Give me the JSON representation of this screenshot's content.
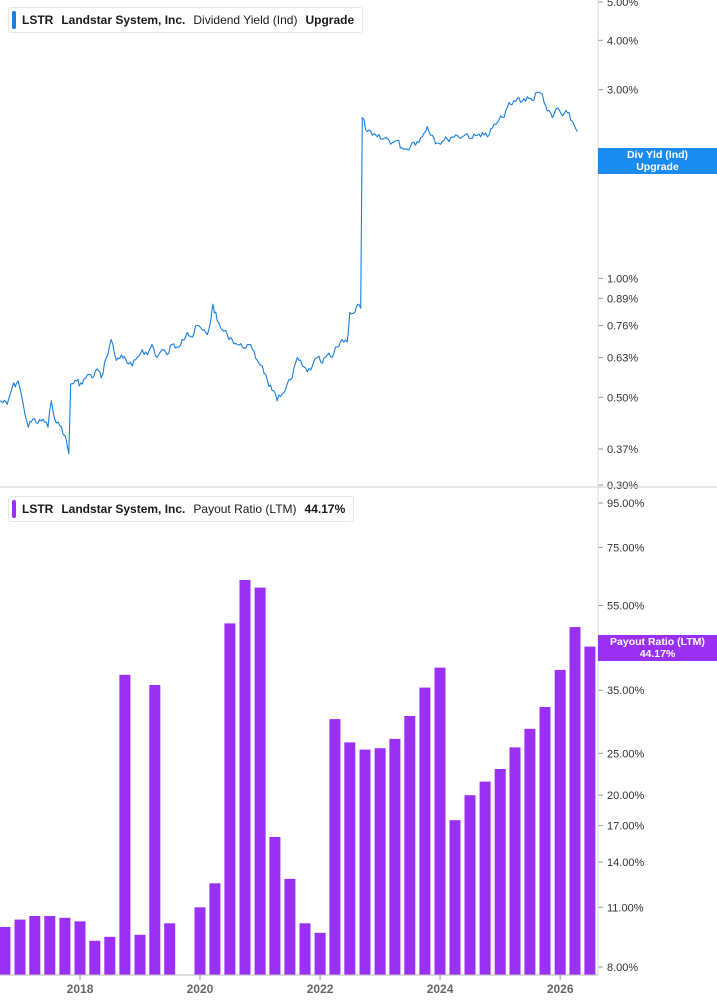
{
  "panels": {
    "top": {
      "ticker": "LSTR",
      "company": "Landstar System, Inc.",
      "metric": "Dividend Yield (Ind)",
      "value": "Upgrade",
      "tag_line1": "Div Yld (Ind)",
      "tag_line2": "Upgrade",
      "color": "#1a7fe0"
    },
    "bottom": {
      "ticker": "LSTR",
      "company": "Landstar System, Inc.",
      "metric": "Payout Ratio (LTM)",
      "value": "44.17%",
      "tag_line1": "Payout Ratio (LTM)",
      "tag_line2": "44.17%",
      "color": "#9b30f5"
    }
  },
  "chart_data": [
    {
      "type": "line",
      "name": "Dividend Yield (Ind)",
      "scale": "log",
      "ylim": [
        0.3,
        5.0
      ],
      "y_ticks": [
        {
          "v": 5.0,
          "label": "5.00%"
        },
        {
          "v": 4.0,
          "label": "4.00%"
        },
        {
          "v": 3.0,
          "label": "3.00%"
        },
        {
          "v": 1.0,
          "label": "1.00%"
        },
        {
          "v": 0.89,
          "label": "0.89%"
        },
        {
          "v": 0.76,
          "label": "0.76%"
        },
        {
          "v": 0.63,
          "label": "0.63%"
        },
        {
          "v": 0.5,
          "label": "0.50%"
        },
        {
          "v": 0.37,
          "label": "0.37%"
        },
        {
          "v": 0.3,
          "label": "0.30%"
        }
      ],
      "xlim": [
        "2016-09",
        "2026-08"
      ],
      "points": [
        [
          "2016-09-01",
          0.49
        ],
        [
          "2016-10-15",
          0.48
        ],
        [
          "2016-11-15",
          0.53
        ],
        [
          "2016-12-20",
          0.55
        ],
        [
          "2017-01-20",
          0.48
        ],
        [
          "2017-02-20",
          0.42
        ],
        [
          "2017-03-20",
          0.44
        ],
        [
          "2017-04-20",
          0.43
        ],
        [
          "2017-05-20",
          0.44
        ],
        [
          "2017-06-20",
          0.42
        ],
        [
          "2017-07-10",
          0.49
        ],
        [
          "2017-08-10",
          0.43
        ],
        [
          "2017-09-10",
          0.42
        ],
        [
          "2017-10-01",
          0.4
        ],
        [
          "2017-10-25",
          0.36
        ],
        [
          "2017-11-05",
          0.54
        ],
        [
          "2017-12-10",
          0.55
        ],
        [
          "2018-01-15",
          0.54
        ],
        [
          "2018-02-15",
          0.57
        ],
        [
          "2018-03-15",
          0.56
        ],
        [
          "2018-04-15",
          0.59
        ],
        [
          "2018-05-10",
          0.56
        ],
        [
          "2018-06-10",
          0.63
        ],
        [
          "2018-07-10",
          0.7
        ],
        [
          "2018-08-10",
          0.62
        ],
        [
          "2018-09-10",
          0.64
        ],
        [
          "2018-10-15",
          0.61
        ],
        [
          "2018-11-15",
          0.6
        ],
        [
          "2018-12-15",
          0.63
        ],
        [
          "2019-01-15",
          0.66
        ],
        [
          "2019-02-15",
          0.64
        ],
        [
          "2019-03-15",
          0.68
        ],
        [
          "2019-04-15",
          0.63
        ],
        [
          "2019-05-15",
          0.66
        ],
        [
          "2019-06-15",
          0.64
        ],
        [
          "2019-07-15",
          0.68
        ],
        [
          "2019-08-15",
          0.67
        ],
        [
          "2019-09-15",
          0.7
        ],
        [
          "2019-10-15",
          0.73
        ],
        [
          "2019-11-15",
          0.71
        ],
        [
          "2019-12-15",
          0.76
        ],
        [
          "2020-01-15",
          0.74
        ],
        [
          "2020-02-15",
          0.72
        ],
        [
          "2020-03-10",
          0.8
        ],
        [
          "2020-03-20",
          0.86
        ],
        [
          "2020-04-15",
          0.78
        ],
        [
          "2020-05-15",
          0.74
        ],
        [
          "2020-06-15",
          0.72
        ],
        [
          "2020-07-15",
          0.7
        ],
        [
          "2020-08-15",
          0.68
        ],
        [
          "2020-09-15",
          0.67
        ],
        [
          "2020-10-15",
          0.68
        ],
        [
          "2020-11-15",
          0.66
        ],
        [
          "2020-12-15",
          0.62
        ],
        [
          "2021-01-15",
          0.6
        ],
        [
          "2021-02-15",
          0.55
        ],
        [
          "2021-03-15",
          0.52
        ],
        [
          "2021-04-15",
          0.49
        ],
        [
          "2021-05-15",
          0.51
        ],
        [
          "2021-06-15",
          0.54
        ],
        [
          "2021-07-15",
          0.56
        ],
        [
          "2021-08-15",
          0.63
        ],
        [
          "2021-09-15",
          0.6
        ],
        [
          "2021-10-15",
          0.58
        ],
        [
          "2021-11-15",
          0.6
        ],
        [
          "2021-12-15",
          0.63
        ],
        [
          "2022-01-15",
          0.61
        ],
        [
          "2022-02-15",
          0.64
        ],
        [
          "2022-03-15",
          0.63
        ],
        [
          "2022-04-15",
          0.67
        ],
        [
          "2022-05-15",
          0.7
        ],
        [
          "2022-06-15",
          0.69
        ],
        [
          "2022-07-01",
          0.82
        ],
        [
          "2022-08-01",
          0.82
        ],
        [
          "2022-08-20",
          0.86
        ],
        [
          "2022-09-05",
          0.84
        ],
        [
          "2022-09-15",
          2.55
        ],
        [
          "2022-10-15",
          2.35
        ],
        [
          "2022-11-15",
          2.3
        ],
        [
          "2022-12-15",
          2.28
        ],
        [
          "2023-01-15",
          2.25
        ],
        [
          "2023-02-15",
          2.26
        ],
        [
          "2023-03-15",
          2.2
        ],
        [
          "2023-04-15",
          2.23
        ],
        [
          "2023-05-15",
          2.14
        ],
        [
          "2023-06-15",
          2.12
        ],
        [
          "2023-07-15",
          2.2
        ],
        [
          "2023-08-15",
          2.22
        ],
        [
          "2023-09-15",
          2.28
        ],
        [
          "2023-10-15",
          2.42
        ],
        [
          "2023-11-15",
          2.3
        ],
        [
          "2023-12-15",
          2.2
        ],
        [
          "2024-01-15",
          2.22
        ],
        [
          "2024-02-15",
          2.25
        ],
        [
          "2024-03-15",
          2.28
        ],
        [
          "2024-04-15",
          2.3
        ],
        [
          "2024-05-15",
          2.28
        ],
        [
          "2024-06-15",
          2.32
        ],
        [
          "2024-07-15",
          2.26
        ],
        [
          "2024-08-15",
          2.3
        ],
        [
          "2024-09-15",
          2.34
        ],
        [
          "2024-10-15",
          2.28
        ],
        [
          "2024-11-15",
          2.4
        ],
        [
          "2024-12-15",
          2.48
        ],
        [
          "2025-01-15",
          2.55
        ],
        [
          "2025-02-15",
          2.72
        ],
        [
          "2025-03-15",
          2.75
        ],
        [
          "2025-04-15",
          2.85
        ],
        [
          "2025-05-15",
          2.8
        ],
        [
          "2025-06-15",
          2.88
        ],
        [
          "2025-07-15",
          2.82
        ],
        [
          "2025-08-15",
          2.95
        ],
        [
          "2025-09-15",
          2.92
        ],
        [
          "2025-10-15",
          2.65
        ],
        [
          "2025-11-15",
          2.55
        ],
        [
          "2025-12-15",
          2.7
        ],
        [
          "2026-01-15",
          2.58
        ],
        [
          "2026-02-15",
          2.62
        ],
        [
          "2026-03-15",
          2.5
        ],
        [
          "2026-04-15",
          2.35
        ]
      ]
    },
    {
      "type": "bar",
      "name": "Payout Ratio (LTM)",
      "scale": "log",
      "ylim": [
        8.0,
        95.0
      ],
      "y_ticks": [
        {
          "v": 95,
          "label": "95.00%"
        },
        {
          "v": 75,
          "label": "75.00%"
        },
        {
          "v": 55,
          "label": "55.00%"
        },
        {
          "v": 35,
          "label": "35.00%"
        },
        {
          "v": 25,
          "label": "25.00%"
        },
        {
          "v": 20,
          "label": "20.00%"
        },
        {
          "v": 17,
          "label": "17.00%"
        },
        {
          "v": 14,
          "label": "14.00%"
        },
        {
          "v": 11,
          "label": "11.00%"
        },
        {
          "v": 8,
          "label": "8.00%"
        }
      ],
      "x_labels": [
        {
          "date": "2018-01-01",
          "label": "2018"
        },
        {
          "date": "2020-01-01",
          "label": "2020"
        },
        {
          "date": "2022-01-01",
          "label": "2022"
        },
        {
          "date": "2024-01-01",
          "label": "2024"
        },
        {
          "date": "2026-01-01",
          "label": "2026"
        }
      ],
      "xlim": [
        "2016-09",
        "2026-08"
      ],
      "bars": [
        [
          "2016-10",
          9.9
        ],
        [
          "2017-01",
          10.3
        ],
        [
          "2017-04",
          10.5
        ],
        [
          "2017-07",
          10.5
        ],
        [
          "2017-10",
          10.4
        ],
        [
          "2018-01",
          10.2
        ],
        [
          "2018-04",
          9.2
        ],
        [
          "2018-07",
          9.4
        ],
        [
          "2018-10",
          38.0
        ],
        [
          "2019-01",
          9.5
        ],
        [
          "2019-04",
          36.0
        ],
        [
          "2019-07",
          10.1
        ],
        [
          "2020-01",
          11.0
        ],
        [
          "2020-04",
          12.5
        ],
        [
          "2020-07",
          50.0
        ],
        [
          "2020-10",
          63.0
        ],
        [
          "2021-01",
          60.5
        ],
        [
          "2021-04",
          16.0
        ],
        [
          "2021-07",
          12.8
        ],
        [
          "2021-10",
          10.1
        ],
        [
          "2022-01",
          9.6
        ],
        [
          "2022-04",
          30.0
        ],
        [
          "2022-07",
          26.5
        ],
        [
          "2022-10",
          25.5
        ],
        [
          "2023-01",
          25.7
        ],
        [
          "2023-04",
          27.0
        ],
        [
          "2023-07",
          30.5
        ],
        [
          "2023-10",
          35.5
        ],
        [
          "2024-01",
          39.5
        ],
        [
          "2024-04",
          17.5
        ],
        [
          "2024-07",
          20.0
        ],
        [
          "2024-10",
          21.5
        ],
        [
          "2025-01",
          23.0
        ],
        [
          "2025-04",
          25.8
        ],
        [
          "2025-07",
          28.5
        ],
        [
          "2025-10",
          32.0
        ],
        [
          "2026-01",
          39.0
        ],
        [
          "2026-04",
          49.0
        ],
        [
          "2026-07",
          44.17
        ]
      ]
    }
  ]
}
